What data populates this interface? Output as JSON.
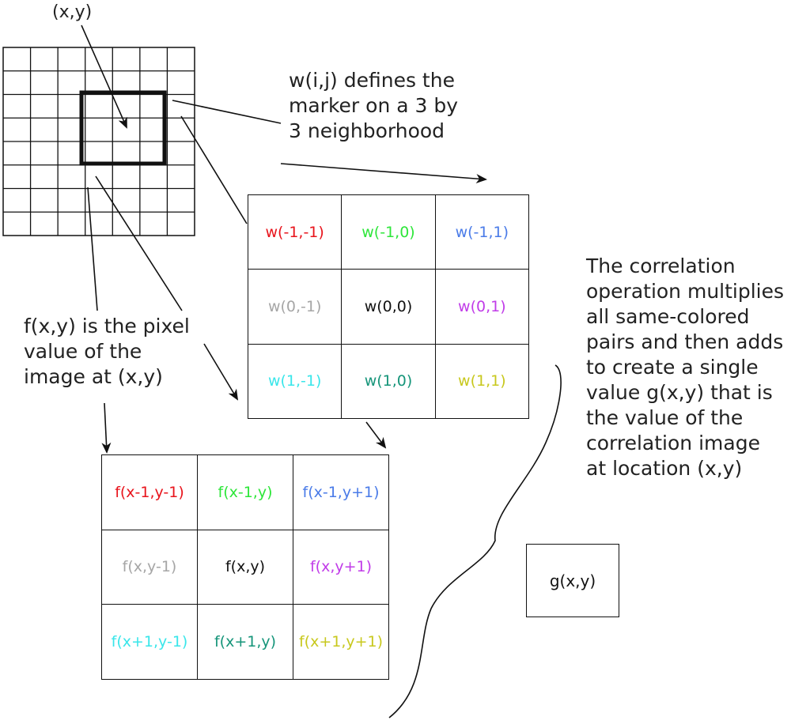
{
  "labels": {
    "xy": "(x,y)",
    "w_description": [
      "w(i,j) defines the",
      "marker on a 3 by",
      "3 neighborhood"
    ],
    "f_description": [
      "f(x,y) is the pixel",
      "value of the",
      "image at  (x,y)"
    ],
    "correlation_description": [
      "The correlation",
      "operation multiplies",
      "all same-colored",
      "pairs and then adds",
      "to create a single",
      "value g(x,y) that is",
      "the value of the",
      "correlation image",
      "at location (x,y)"
    ]
  },
  "w_grid": {
    "cells": [
      [
        {
          "text": "w(-1,-1)",
          "color": "#e8141c"
        },
        {
          "text": "w(-1,0)",
          "color": "#2ee63a"
        },
        {
          "text": "w(-1,1)",
          "color": "#4a7be8"
        }
      ],
      [
        {
          "text": "w(0,-1)",
          "color": "#a6a6a6"
        },
        {
          "text": "w(0,0)",
          "color": "#111111"
        },
        {
          "text": "w(0,1)",
          "color": "#c13ce8"
        }
      ],
      [
        {
          "text": "w(1,-1)",
          "color": "#3ae6ea"
        },
        {
          "text": "w(1,0)",
          "color": "#16957a"
        },
        {
          "text": "w(1,1)",
          "color": "#c8c81e"
        }
      ]
    ]
  },
  "f_grid": {
    "cells": [
      [
        {
          "text": "f(x-1,y-1)",
          "color": "#e8141c"
        },
        {
          "text": "f(x-1,y)",
          "color": "#2ee63a"
        },
        {
          "text": "f(x-1,y+1)",
          "color": "#4a7be8"
        }
      ],
      [
        {
          "text": "f(x,y-1)",
          "color": "#a6a6a6"
        },
        {
          "text": "f(x,y)",
          "color": "#111111"
        },
        {
          "text": "f(x,y+1)",
          "color": "#c13ce8"
        }
      ],
      [
        {
          "text": "f(x+1,y-1)",
          "color": "#3ae6ea"
        },
        {
          "text": "f(x+1,y)",
          "color": "#16957a"
        },
        {
          "text": "f(x+1,y+1)",
          "color": "#c8c81e"
        }
      ]
    ]
  },
  "g_box": {
    "text": "g(x,y)"
  },
  "image_grid": {
    "rows": 8,
    "cols": 7
  }
}
